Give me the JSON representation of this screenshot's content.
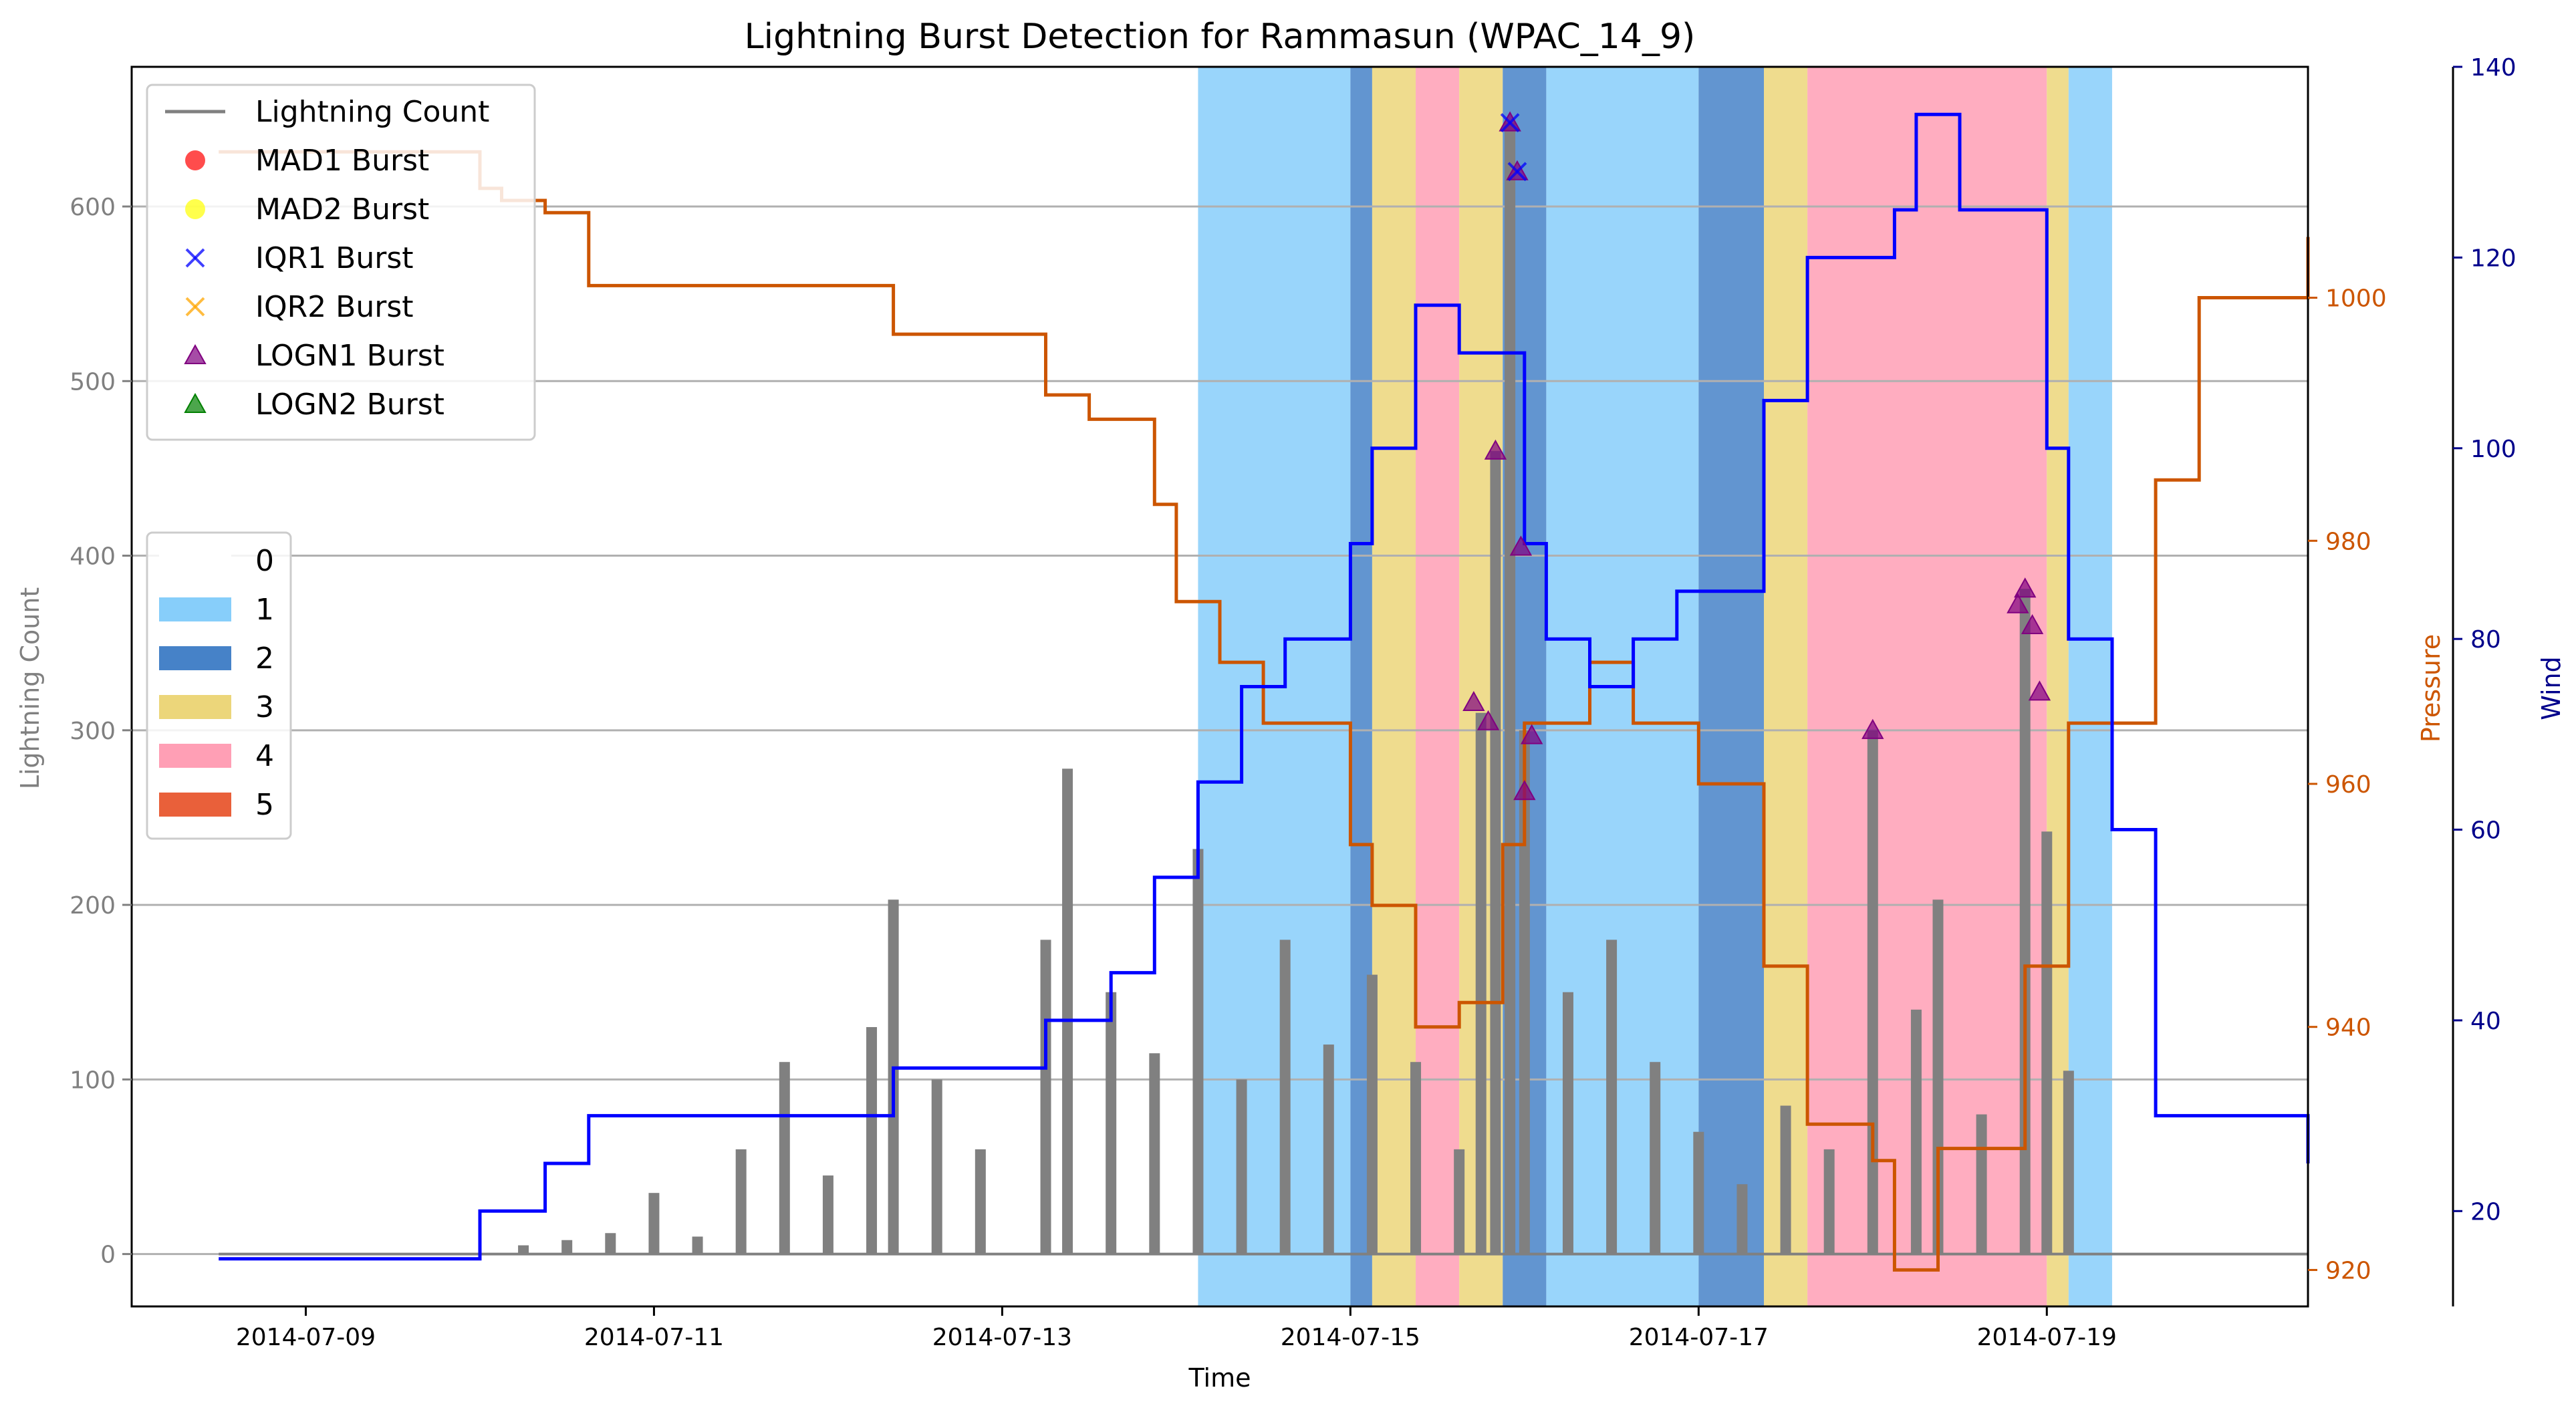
{
  "chart_data": {
    "type": "line",
    "title": "Lightning Burst Detection for Rammasun (WPAC_14_9)",
    "xlabel": "Time",
    "ylabel_left": "Lightning Count",
    "ylabel_pressure": "Pressure",
    "ylabel_wind": "Wind",
    "xlim": [
      "2014-07-08 00:00",
      "2014-07-20 12:00"
    ],
    "x_ticks": [
      "2014-07-09",
      "2014-07-11",
      "2014-07-13",
      "2014-07-15",
      "2014-07-17",
      "2014-07-19"
    ],
    "ylim_left": [
      -30,
      680
    ],
    "y_ticks_left": [
      0,
      100,
      200,
      300,
      400,
      500,
      600
    ],
    "ylim_pressure": [
      917,
      1019
    ],
    "y_ticks_pressure": [
      920,
      940,
      960,
      980,
      1000
    ],
    "ylim_wind": [
      10,
      140
    ],
    "y_ticks_wind": [
      20,
      40,
      60,
      80,
      100,
      120,
      140
    ],
    "grid": "horizontal",
    "colors": {
      "lightning": "#808080",
      "pressure": "#cc5500",
      "wind": "#0000ff",
      "pressure_axis": "#cc5500",
      "wind_axis": "#00008b",
      "left_axis": "#808080",
      "mad1": "#ff0000",
      "mad2": "#ffff00",
      "iqr1": "#0000ff",
      "iqr2": "#ffa500",
      "logn1": "#800080",
      "logn2": "#008000"
    },
    "category_colors": {
      "0": "#ffffff",
      "1": "#87cefa",
      "2": "#4682c8",
      "3": "#ecd67a",
      "4": "#ff9fb5",
      "5": "#e9603a"
    },
    "category_bands": [
      {
        "start": "2014-07-14 03:00",
        "end": "2014-07-15 00:00",
        "category": "1"
      },
      {
        "start": "2014-07-15 00:00",
        "end": "2014-07-15 03:00",
        "category": "2"
      },
      {
        "start": "2014-07-15 03:00",
        "end": "2014-07-15 09:00",
        "category": "3"
      },
      {
        "start": "2014-07-15 09:00",
        "end": "2014-07-15 15:00",
        "category": "4"
      },
      {
        "start": "2014-07-15 15:00",
        "end": "2014-07-15 21:00",
        "category": "3"
      },
      {
        "start": "2014-07-15 21:00",
        "end": "2014-07-16 03:00",
        "category": "2"
      },
      {
        "start": "2014-07-16 03:00",
        "end": "2014-07-17 00:00",
        "category": "1"
      },
      {
        "start": "2014-07-17 00:00",
        "end": "2014-07-17 09:00",
        "category": "2"
      },
      {
        "start": "2014-07-17 09:00",
        "end": "2014-07-17 15:00",
        "category": "3"
      },
      {
        "start": "2014-07-17 15:00",
        "end": "2014-07-19 00:00",
        "category": "4"
      },
      {
        "start": "2014-07-19 00:00",
        "end": "2014-07-19 03:00",
        "category": "3"
      },
      {
        "start": "2014-07-19 03:00",
        "end": "2014-07-19 09:00",
        "category": "1"
      }
    ],
    "lightning_count": [
      {
        "x": "2014-07-10 06:00",
        "y": 5
      },
      {
        "x": "2014-07-10 12:00",
        "y": 8
      },
      {
        "x": "2014-07-10 18:00",
        "y": 12
      },
      {
        "x": "2014-07-11 00:00",
        "y": 35
      },
      {
        "x": "2014-07-11 06:00",
        "y": 10
      },
      {
        "x": "2014-07-11 12:00",
        "y": 60
      },
      {
        "x": "2014-07-11 18:00",
        "y": 110
      },
      {
        "x": "2014-07-12 00:00",
        "y": 45
      },
      {
        "x": "2014-07-12 06:00",
        "y": 130
      },
      {
        "x": "2014-07-12 09:00",
        "y": 203
      },
      {
        "x": "2014-07-12 15:00",
        "y": 100
      },
      {
        "x": "2014-07-12 21:00",
        "y": 60
      },
      {
        "x": "2014-07-13 06:00",
        "y": 180
      },
      {
        "x": "2014-07-13 09:00",
        "y": 278
      },
      {
        "x": "2014-07-13 15:00",
        "y": 150
      },
      {
        "x": "2014-07-13 21:00",
        "y": 115
      },
      {
        "x": "2014-07-14 03:00",
        "y": 232
      },
      {
        "x": "2014-07-14 09:00",
        "y": 100
      },
      {
        "x": "2014-07-14 15:00",
        "y": 180
      },
      {
        "x": "2014-07-14 21:00",
        "y": 120
      },
      {
        "x": "2014-07-15 03:00",
        "y": 160
      },
      {
        "x": "2014-07-15 09:00",
        "y": 110
      },
      {
        "x": "2014-07-15 15:00",
        "y": 60
      },
      {
        "x": "2014-07-15 18:00",
        "y": 310
      },
      {
        "x": "2014-07-15 20:00",
        "y": 460
      },
      {
        "x": "2014-07-15 22:00",
        "y": 648
      },
      {
        "x": "2014-07-16 00:00",
        "y": 300
      },
      {
        "x": "2014-07-16 06:00",
        "y": 150
      },
      {
        "x": "2014-07-16 12:00",
        "y": 180
      },
      {
        "x": "2014-07-16 18:00",
        "y": 110
      },
      {
        "x": "2014-07-17 00:00",
        "y": 70
      },
      {
        "x": "2014-07-17 06:00",
        "y": 40
      },
      {
        "x": "2014-07-17 12:00",
        "y": 85
      },
      {
        "x": "2014-07-17 18:00",
        "y": 60
      },
      {
        "x": "2014-07-18 00:00",
        "y": 300
      },
      {
        "x": "2014-07-18 06:00",
        "y": 140
      },
      {
        "x": "2014-07-18 09:00",
        "y": 203
      },
      {
        "x": "2014-07-18 15:00",
        "y": 80
      },
      {
        "x": "2014-07-18 21:00",
        "y": 381
      },
      {
        "x": "2014-07-19 00:00",
        "y": 242
      },
      {
        "x": "2014-07-19 03:00",
        "y": 105
      }
    ],
    "pressure": [
      {
        "x": "2014-07-08 12:00",
        "y": 1012
      },
      {
        "x": "2014-07-10 00:00",
        "y": 1012
      },
      {
        "x": "2014-07-10 00:00",
        "y": 1009
      },
      {
        "x": "2014-07-10 03:00",
        "y": 1009
      },
      {
        "x": "2014-07-10 03:00",
        "y": 1008
      },
      {
        "x": "2014-07-10 09:00",
        "y": 1008
      },
      {
        "x": "2014-07-10 09:00",
        "y": 1007
      },
      {
        "x": "2014-07-10 15:00",
        "y": 1007
      },
      {
        "x": "2014-07-10 15:00",
        "y": 1001
      },
      {
        "x": "2014-07-12 09:00",
        "y": 1001
      },
      {
        "x": "2014-07-12 09:00",
        "y": 997
      },
      {
        "x": "2014-07-13 06:00",
        "y": 997
      },
      {
        "x": "2014-07-13 06:00",
        "y": 992
      },
      {
        "x": "2014-07-13 12:00",
        "y": 992
      },
      {
        "x": "2014-07-13 12:00",
        "y": 990
      },
      {
        "x": "2014-07-13 21:00",
        "y": 990
      },
      {
        "x": "2014-07-13 21:00",
        "y": 983
      },
      {
        "x": "2014-07-14 00:00",
        "y": 983
      },
      {
        "x": "2014-07-14 00:00",
        "y": 975
      },
      {
        "x": "2014-07-14 06:00",
        "y": 975
      },
      {
        "x": "2014-07-14 06:00",
        "y": 970
      },
      {
        "x": "2014-07-14 12:00",
        "y": 970
      },
      {
        "x": "2014-07-14 12:00",
        "y": 965
      },
      {
        "x": "2014-07-15 00:00",
        "y": 965
      },
      {
        "x": "2014-07-15 00:00",
        "y": 955
      },
      {
        "x": "2014-07-15 03:00",
        "y": 955
      },
      {
        "x": "2014-07-15 03:00",
        "y": 950
      },
      {
        "x": "2014-07-15 09:00",
        "y": 950
      },
      {
        "x": "2014-07-15 09:00",
        "y": 940
      },
      {
        "x": "2014-07-15 15:00",
        "y": 940
      },
      {
        "x": "2014-07-15 15:00",
        "y": 942
      },
      {
        "x": "2014-07-15 21:00",
        "y": 942
      },
      {
        "x": "2014-07-15 21:00",
        "y": 955
      },
      {
        "x": "2014-07-16 00:00",
        "y": 955
      },
      {
        "x": "2014-07-16 00:00",
        "y": 965
      },
      {
        "x": "2014-07-16 09:00",
        "y": 965
      },
      {
        "x": "2014-07-16 09:00",
        "y": 970
      },
      {
        "x": "2014-07-16 15:00",
        "y": 970
      },
      {
        "x": "2014-07-16 15:00",
        "y": 965
      },
      {
        "x": "2014-07-17 00:00",
        "y": 965
      },
      {
        "x": "2014-07-17 00:00",
        "y": 960
      },
      {
        "x": "2014-07-17 09:00",
        "y": 960
      },
      {
        "x": "2014-07-17 09:00",
        "y": 945
      },
      {
        "x": "2014-07-17 15:00",
        "y": 945
      },
      {
        "x": "2014-07-17 15:00",
        "y": 932
      },
      {
        "x": "2014-07-18 00:00",
        "y": 932
      },
      {
        "x": "2014-07-18 00:00",
        "y": 929
      },
      {
        "x": "2014-07-18 03:00",
        "y": 929
      },
      {
        "x": "2014-07-18 03:00",
        "y": 920
      },
      {
        "x": "2014-07-18 09:00",
        "y": 920
      },
      {
        "x": "2014-07-18 09:00",
        "y": 930
      },
      {
        "x": "2014-07-18 21:00",
        "y": 930
      },
      {
        "x": "2014-07-18 21:00",
        "y": 945
      },
      {
        "x": "2014-07-19 03:00",
        "y": 945
      },
      {
        "x": "2014-07-19 03:00",
        "y": 965
      },
      {
        "x": "2014-07-19 15:00",
        "y": 965
      },
      {
        "x": "2014-07-19 15:00",
        "y": 985
      },
      {
        "x": "2014-07-19 21:00",
        "y": 985
      },
      {
        "x": "2014-07-19 21:00",
        "y": 1000
      },
      {
        "x": "2014-07-20 12:00",
        "y": 1000
      },
      {
        "x": "2014-07-20 12:00",
        "y": 1005
      }
    ],
    "wind": [
      {
        "x": "2014-07-08 12:00",
        "y": 15
      },
      {
        "x": "2014-07-10 00:00",
        "y": 15
      },
      {
        "x": "2014-07-10 00:00",
        "y": 20
      },
      {
        "x": "2014-07-10 09:00",
        "y": 20
      },
      {
        "x": "2014-07-10 09:00",
        "y": 25
      },
      {
        "x": "2014-07-10 15:00",
        "y": 25
      },
      {
        "x": "2014-07-10 15:00",
        "y": 30
      },
      {
        "x": "2014-07-12 09:00",
        "y": 30
      },
      {
        "x": "2014-07-12 09:00",
        "y": 35
      },
      {
        "x": "2014-07-13 06:00",
        "y": 35
      },
      {
        "x": "2014-07-13 06:00",
        "y": 40
      },
      {
        "x": "2014-07-13 15:00",
        "y": 40
      },
      {
        "x": "2014-07-13 15:00",
        "y": 45
      },
      {
        "x": "2014-07-13 21:00",
        "y": 45
      },
      {
        "x": "2014-07-13 21:00",
        "y": 55
      },
      {
        "x": "2014-07-14 03:00",
        "y": 55
      },
      {
        "x": "2014-07-14 03:00",
        "y": 65
      },
      {
        "x": "2014-07-14 09:00",
        "y": 65
      },
      {
        "x": "2014-07-14 09:00",
        "y": 75
      },
      {
        "x": "2014-07-14 15:00",
        "y": 75
      },
      {
        "x": "2014-07-14 15:00",
        "y": 80
      },
      {
        "x": "2014-07-15 00:00",
        "y": 80
      },
      {
        "x": "2014-07-15 00:00",
        "y": 90
      },
      {
        "x": "2014-07-15 03:00",
        "y": 90
      },
      {
        "x": "2014-07-15 03:00",
        "y": 100
      },
      {
        "x": "2014-07-15 09:00",
        "y": 100
      },
      {
        "x": "2014-07-15 09:00",
        "y": 115
      },
      {
        "x": "2014-07-15 15:00",
        "y": 115
      },
      {
        "x": "2014-07-15 15:00",
        "y": 110
      },
      {
        "x": "2014-07-16 00:00",
        "y": 110
      },
      {
        "x": "2014-07-16 00:00",
        "y": 90
      },
      {
        "x": "2014-07-16 03:00",
        "y": 90
      },
      {
        "x": "2014-07-16 03:00",
        "y": 80
      },
      {
        "x": "2014-07-16 09:00",
        "y": 80
      },
      {
        "x": "2014-07-16 09:00",
        "y": 75
      },
      {
        "x": "2014-07-16 15:00",
        "y": 75
      },
      {
        "x": "2014-07-16 15:00",
        "y": 80
      },
      {
        "x": "2014-07-16 21:00",
        "y": 80
      },
      {
        "x": "2014-07-16 21:00",
        "y": 85
      },
      {
        "x": "2014-07-17 09:00",
        "y": 85
      },
      {
        "x": "2014-07-17 09:00",
        "y": 105
      },
      {
        "x": "2014-07-17 15:00",
        "y": 105
      },
      {
        "x": "2014-07-17 15:00",
        "y": 120
      },
      {
        "x": "2014-07-18 03:00",
        "y": 120
      },
      {
        "x": "2014-07-18 03:00",
        "y": 125
      },
      {
        "x": "2014-07-18 06:00",
        "y": 125
      },
      {
        "x": "2014-07-18 06:00",
        "y": 135
      },
      {
        "x": "2014-07-18 12:00",
        "y": 135
      },
      {
        "x": "2014-07-18 12:00",
        "y": 125
      },
      {
        "x": "2014-07-19 00:00",
        "y": 125
      },
      {
        "x": "2014-07-19 00:00",
        "y": 100
      },
      {
        "x": "2014-07-19 03:00",
        "y": 100
      },
      {
        "x": "2014-07-19 03:00",
        "y": 80
      },
      {
        "x": "2014-07-19 09:00",
        "y": 80
      },
      {
        "x": "2014-07-19 09:00",
        "y": 60
      },
      {
        "x": "2014-07-19 15:00",
        "y": 60
      },
      {
        "x": "2014-07-19 15:00",
        "y": 30
      },
      {
        "x": "2014-07-20 12:00",
        "y": 30
      },
      {
        "x": "2014-07-20 12:00",
        "y": 25
      }
    ],
    "bursts": {
      "IQR1": [
        {
          "x": "2014-07-15 22:00",
          "y": 648
        },
        {
          "x": "2014-07-15 23:00",
          "y": 620
        }
      ],
      "LOGN1": [
        {
          "x": "2014-07-15 22:00",
          "y": 648
        },
        {
          "x": "2014-07-15 23:00",
          "y": 620
        },
        {
          "x": "2014-07-15 20:00",
          "y": 460
        },
        {
          "x": "2014-07-15 23:30",
          "y": 405
        },
        {
          "x": "2014-07-15 17:00",
          "y": 316
        },
        {
          "x": "2014-07-15 19:00",
          "y": 305
        },
        {
          "x": "2014-07-16 01:00",
          "y": 297
        },
        {
          "x": "2014-07-16 00:00",
          "y": 265
        },
        {
          "x": "2014-07-18 00:00",
          "y": 300
        },
        {
          "x": "2014-07-18 21:00",
          "y": 381
        },
        {
          "x": "2014-07-18 20:00",
          "y": 372
        },
        {
          "x": "2014-07-18 22:00",
          "y": 360
        },
        {
          "x": "2014-07-18 23:00",
          "y": 322
        }
      ],
      "MAD1": [],
      "MAD2": [],
      "IQR2": [],
      "LOGN2": []
    },
    "legend_markers": {
      "position": "upper-left",
      "entries": [
        {
          "label": "Lightning Count",
          "kind": "line",
          "color_key": "lightning"
        },
        {
          "label": "MAD1 Burst",
          "kind": "circle",
          "color_key": "mad1"
        },
        {
          "label": "MAD2 Burst",
          "kind": "circle",
          "color_key": "mad2"
        },
        {
          "label": "IQR1 Burst",
          "kind": "x",
          "color_key": "iqr1"
        },
        {
          "label": "IQR2 Burst",
          "kind": "x",
          "color_key": "iqr2"
        },
        {
          "label": "LOGN1 Burst",
          "kind": "triangle",
          "color_key": "logn1"
        },
        {
          "label": "LOGN2 Burst",
          "kind": "triangle",
          "color_key": "logn2"
        }
      ]
    },
    "legend_categories": {
      "position": "center-left",
      "entries": [
        {
          "label": "0",
          "cat": "0"
        },
        {
          "label": "1",
          "cat": "1"
        },
        {
          "label": "2",
          "cat": "2"
        },
        {
          "label": "3",
          "cat": "3"
        },
        {
          "label": "4",
          "cat": "4"
        },
        {
          "label": "5",
          "cat": "5"
        }
      ]
    }
  }
}
